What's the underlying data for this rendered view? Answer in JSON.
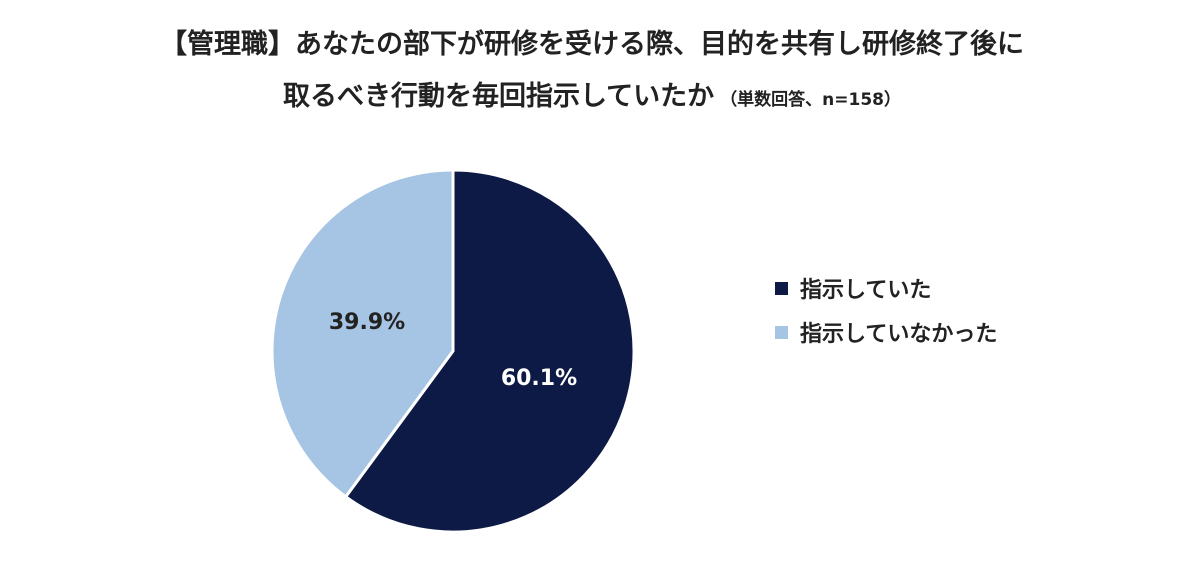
{
  "title": {
    "line1": "【管理職】あなたの部下が研修を受ける際、目的を共有し研修終了後に",
    "line2": "取るべき行動を毎回指示していたか",
    "note": "（単数回答、n=158）"
  },
  "chart_data": {
    "type": "pie",
    "slices": [
      {
        "label": "指示していた",
        "value": 60.1,
        "display": "60.1%",
        "color": "#0d1a45",
        "text_color": "#ffffff"
      },
      {
        "label": "指示していなかった",
        "value": 39.9,
        "display": "39.9%",
        "color": "#a6c4e3",
        "text_color": "#222222"
      }
    ],
    "legend_position": "right"
  }
}
